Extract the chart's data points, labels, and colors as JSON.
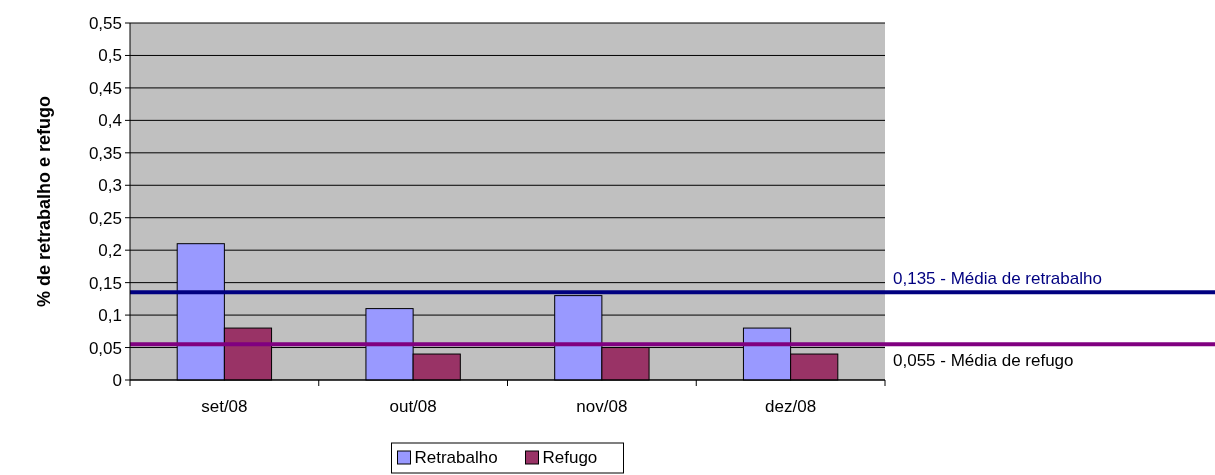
{
  "chart_data": {
    "type": "bar",
    "ylabel": "% de retrabalho e  refugo",
    "categories": [
      "set/08",
      "out/08",
      "nov/08",
      "dez/08"
    ],
    "series": [
      {
        "name": "Retrabalho",
        "color": "#9999ff",
        "values": [
          0.21,
          0.11,
          0.13,
          0.08
        ]
      },
      {
        "name": "Refugo",
        "color": "#993366",
        "values": [
          0.08,
          0.04,
          0.05,
          0.04
        ]
      }
    ],
    "ylim": [
      0,
      0.55
    ],
    "yticks": [
      {
        "value": 0,
        "label": "0"
      },
      {
        "value": 0.05,
        "label": "0,05"
      },
      {
        "value": 0.1,
        "label": "0,1"
      },
      {
        "value": 0.15,
        "label": "0,15"
      },
      {
        "value": 0.2,
        "label": "0,2"
      },
      {
        "value": 0.25,
        "label": "0,25"
      },
      {
        "value": 0.3,
        "label": "0,3"
      },
      {
        "value": 0.35,
        "label": "0,35"
      },
      {
        "value": 0.4,
        "label": "0,4"
      },
      {
        "value": 0.45,
        "label": "0,45"
      },
      {
        "value": 0.5,
        "label": "0,5"
      },
      {
        "value": 0.55,
        "label": "0,55"
      }
    ],
    "grid": "y",
    "legend": "bottom",
    "ref_lines": [
      {
        "axis": "y",
        "value": 0.135,
        "label": "0,135 - Média de retrabalho",
        "color": "#000080"
      },
      {
        "axis": "y",
        "value": 0.055,
        "label": "0,055 - Média de refugo",
        "color": "#800080"
      }
    ]
  }
}
